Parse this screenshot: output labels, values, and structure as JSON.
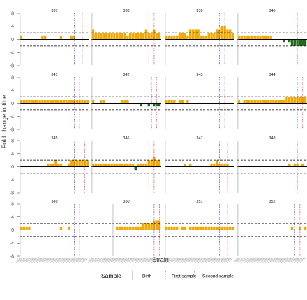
{
  "chart_data": {
    "type": "bar",
    "ylabel": "Fold change in titre",
    "xlabel": "Strain",
    "ylim": [
      -8,
      8
    ],
    "yticks": [
      -8,
      -4,
      0,
      4,
      8
    ],
    "reference_lines": {
      "dashed_y": [
        2,
        -2
      ],
      "solid_y": 0
    },
    "positive_color": "#f2a900",
    "negative_color": "#1a6b1a",
    "strain_count": 26,
    "strain_labels": [
      "A/1968",
      "A/1972",
      "A/1975",
      "A/1977",
      "A/1979",
      "A/1982",
      "A/1985",
      "A/1987",
      "A/1989",
      "A/1992",
      "A/1993",
      "A/1995",
      "A/1996",
      "A/1997",
      "A/1999",
      "A/2000",
      "A/2002",
      "A/2003",
      "A/2004",
      "A/2005",
      "A/2006",
      "A/2007",
      "A/2008",
      "A/2009",
      "A/2010",
      "A/2011"
    ],
    "legend": {
      "title": "Sample",
      "entries": [
        {
          "label": "Birth",
          "color": "#b0b0b0"
        },
        {
          "label": "First sample",
          "color": "#5c5cdc"
        },
        {
          "label": "Second sample",
          "color": "#e05050"
        }
      ]
    },
    "panels": [
      {
        "id": "337",
        "birth": 0,
        "first": 20.5,
        "second": 23.5,
        "values": [
          1,
          0,
          0,
          0,
          0,
          0,
          0,
          0,
          1,
          1,
          0,
          0,
          0,
          0,
          0,
          1,
          0,
          0,
          0,
          1,
          1,
          0,
          0,
          0,
          0,
          0
        ]
      },
      {
        "id": "338",
        "birth": 0,
        "first": 21.5,
        "second": 23.5,
        "values": [
          3,
          2,
          2,
          2,
          2,
          2,
          2,
          2,
          2,
          2,
          2,
          2,
          2,
          1,
          2,
          2,
          2,
          2,
          2,
          2,
          3,
          2,
          2,
          3,
          2,
          2
        ]
      },
      {
        "id": "339",
        "birth": 0,
        "first": 20.5,
        "second": 22.5,
        "values": [
          1,
          1,
          1,
          1,
          1,
          2,
          2,
          2,
          1,
          3,
          3,
          3,
          3,
          1,
          1,
          1,
          2,
          2,
          2,
          3,
          3,
          4,
          4,
          3,
          3,
          2
        ]
      },
      {
        "id": "340",
        "birth": 0,
        "first": 20.5,
        "second": 22.5,
        "values": [
          1,
          1,
          1,
          1,
          1,
          1,
          1,
          1,
          1,
          1,
          1,
          1,
          1,
          0,
          0,
          0,
          0,
          -1,
          0,
          -1,
          -2,
          -2,
          -2,
          -2,
          -2,
          -2
        ]
      },
      {
        "id": "341",
        "birth": 0,
        "first": 20.5,
        "second": 22.5,
        "values": [
          1,
          1,
          1,
          1,
          1,
          1,
          1,
          1,
          1,
          1,
          1,
          1,
          1,
          1,
          1,
          1,
          1,
          1,
          1,
          1,
          1,
          1,
          1,
          1,
          1,
          1
        ]
      },
      {
        "id": "342",
        "birth": 0,
        "first": 22.5,
        "second": 24.5,
        "values": [
          1,
          0,
          0,
          1,
          1,
          0,
          0,
          0,
          0,
          0,
          0,
          1,
          1,
          1,
          0,
          0,
          0,
          0,
          -1,
          0,
          0,
          -1,
          0,
          -1,
          -1,
          -1
        ]
      },
      {
        "id": "343",
        "birth": 0,
        "first": 20.5,
        "second": 22.5,
        "values": [
          1,
          1,
          1,
          1,
          0,
          1,
          1,
          0,
          1,
          0,
          0,
          0,
          0,
          0,
          0,
          0,
          0,
          0,
          0,
          0,
          0,
          0,
          0,
          0,
          0,
          0
        ]
      },
      {
        "id": "344",
        "birth": 0,
        "first": 22.5,
        "second": 24.5,
        "values": [
          1,
          0,
          1,
          1,
          1,
          1,
          1,
          1,
          1,
          1,
          1,
          1,
          1,
          1,
          1,
          1,
          1,
          1,
          2,
          2,
          2,
          2,
          2,
          2,
          2,
          2
        ]
      },
      {
        "id": "345",
        "birth": 0,
        "first": 20.5,
        "second": 24.5,
        "values": [
          0,
          0,
          0,
          0,
          0,
          0,
          0,
          0,
          0,
          0,
          1,
          1,
          1,
          2,
          1,
          1,
          0,
          0,
          1,
          2,
          2,
          2,
          2,
          2,
          2,
          2
        ]
      },
      {
        "id": "346",
        "birth": 0,
        "first": 21.5,
        "second": 23.5,
        "values": [
          1,
          1,
          1,
          1,
          1,
          1,
          1,
          1,
          1,
          1,
          1,
          1,
          1,
          1,
          1,
          1,
          -1,
          1,
          1,
          1,
          1,
          2,
          2,
          3,
          2,
          2
        ]
      },
      {
        "id": "347",
        "birth": 0,
        "first": 20.5,
        "second": 23.5,
        "values": [
          0,
          0,
          0,
          0,
          0,
          0,
          0,
          1,
          0,
          1,
          0,
          0,
          0,
          0,
          0,
          0,
          0,
          1,
          1,
          2,
          1,
          1,
          1,
          1,
          0,
          0
        ]
      },
      {
        "id": "348",
        "birth": 0,
        "first": 20.5,
        "second": 22.5,
        "values": [
          0,
          0,
          0,
          0,
          0,
          0,
          0,
          0,
          0,
          0,
          0,
          0,
          0,
          0,
          0,
          0,
          0,
          0,
          0,
          1,
          0,
          1,
          1,
          0,
          1,
          0
        ]
      },
      {
        "id": "349",
        "birth": 0,
        "first": 20.5,
        "second": 22.5,
        "values": [
          1,
          1,
          1,
          1,
          0,
          0,
          0,
          0,
          0,
          0,
          0,
          0,
          0,
          0,
          0,
          1,
          0,
          0,
          1,
          0,
          0,
          0,
          0,
          0,
          0,
          0
        ]
      },
      {
        "id": "350",
        "birth": 8,
        "first": 23.5,
        "second": 25.5,
        "values": [
          0,
          0,
          0,
          0,
          0,
          0,
          0,
          0,
          0,
          1,
          1,
          1,
          1,
          1,
          1,
          1,
          1,
          1,
          1,
          2,
          2,
          2,
          2,
          3,
          3,
          3
        ]
      },
      {
        "id": "351",
        "birth": 0,
        "first": 20.5,
        "second": 23.5,
        "values": [
          1,
          1,
          1,
          1,
          1,
          0,
          1,
          1,
          0,
          1,
          1,
          1,
          1,
          1,
          1,
          1,
          1,
          1,
          1,
          1,
          1,
          1,
          1,
          1,
          1,
          1
        ]
      },
      {
        "id": "352",
        "birth": 0,
        "first": 21.5,
        "second": 23.5,
        "values": [
          0,
          0,
          0,
          0,
          0,
          0,
          0,
          0,
          0,
          0,
          0,
          0,
          0,
          0,
          0,
          0,
          0,
          0,
          0,
          0,
          1,
          0,
          0,
          1,
          0,
          1
        ]
      }
    ]
  }
}
